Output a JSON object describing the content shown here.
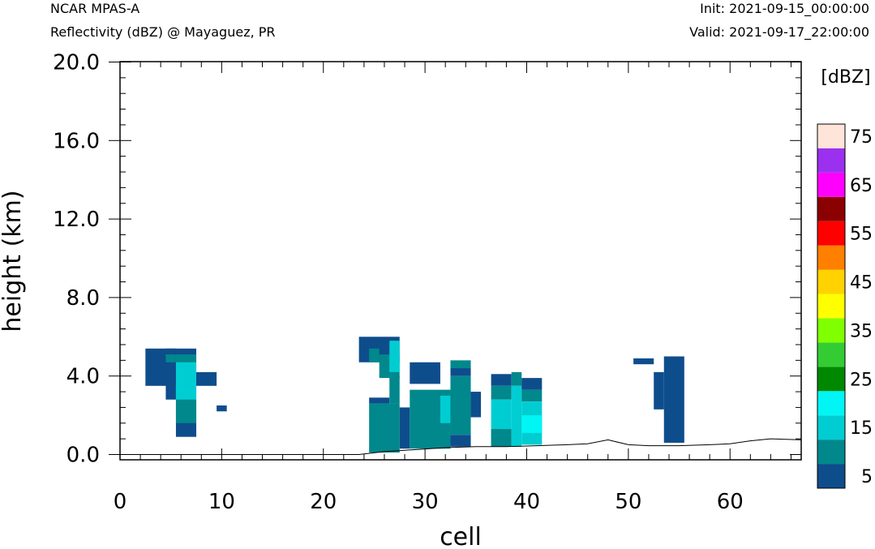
{
  "header": {
    "model": "NCAR MPAS-A",
    "subtitle": "Reflectivity (dBZ) @ Mayaguez, PR",
    "init": "Init: 2021-09-15_00:00:00",
    "valid": "Valid: 2021-09-17_22:00:00"
  },
  "chart_data": {
    "type": "heatmap",
    "xlabel": "cell",
    "ylabel": "height (km)",
    "xlim": [
      0,
      67
    ],
    "ylim": [
      -0.3,
      20.0
    ],
    "x_ticks": [
      0,
      10,
      20,
      30,
      40,
      50,
      60
    ],
    "x_tick_labels": [
      "0",
      "10",
      "20",
      "30",
      "40",
      "50",
      "60"
    ],
    "y_ticks": [
      0,
      4,
      8,
      12,
      16,
      20
    ],
    "y_tick_labels": [
      "0.0",
      "4.0",
      "8.0",
      "12.0",
      "16.0",
      "20.0"
    ],
    "colorbar": {
      "title": "[dBZ]",
      "levels": [
        5,
        10,
        15,
        20,
        25,
        30,
        35,
        40,
        45,
        50,
        55,
        60,
        65,
        70,
        75
      ],
      "labels": [
        "5",
        "15",
        "25",
        "35",
        "45",
        "55",
        "65",
        "75"
      ],
      "colors": [
        "#0e4d8c",
        "#00888c",
        "#00cdd2",
        "#00f5f5",
        "#008800",
        "#33cc33",
        "#80ff00",
        "#ffff00",
        "#ffd200",
        "#ff7f00",
        "#ff0000",
        "#8b0000",
        "#ff00ff",
        "#9b30ee",
        "#ffe4da"
      ]
    },
    "terrain": [
      [
        0,
        0
      ],
      [
        23.5,
        0
      ],
      [
        26,
        0.15
      ],
      [
        29,
        0.25
      ],
      [
        32,
        0.35
      ],
      [
        35,
        0.4
      ],
      [
        38,
        0.4
      ],
      [
        41,
        0.45
      ],
      [
        44,
        0.5
      ],
      [
        46,
        0.55
      ],
      [
        48,
        0.75
      ],
      [
        50,
        0.5
      ],
      [
        52,
        0.45
      ],
      [
        55,
        0.45
      ],
      [
        58,
        0.5
      ],
      [
        60,
        0.55
      ],
      [
        62,
        0.7
      ],
      [
        64,
        0.8
      ],
      [
        67,
        0.75
      ]
    ],
    "cells": [
      {
        "x": [
          2.5,
          5.5
        ],
        "y": [
          3.5,
          5.4
        ],
        "dbz": 5
      },
      {
        "x": [
          4.5,
          5.5
        ],
        "y": [
          2.8,
          5.4
        ],
        "dbz": 5
      },
      {
        "x": [
          4.5,
          5.5
        ],
        "y": [
          4.7,
          5.1
        ],
        "dbz": 10
      },
      {
        "x": [
          5.5,
          7.5
        ],
        "y": [
          0.9,
          5.4
        ],
        "dbz": 5
      },
      {
        "x": [
          5.5,
          7.5
        ],
        "y": [
          1.6,
          5.1
        ],
        "dbz": 10
      },
      {
        "x": [
          5.5,
          7.5
        ],
        "y": [
          2.8,
          4.7
        ],
        "dbz": 15
      },
      {
        "x": [
          7.5,
          9.5
        ],
        "y": [
          3.5,
          4.2
        ],
        "dbz": 5
      },
      {
        "x": [
          9.5,
          10.5
        ],
        "y": [
          2.2,
          2.5
        ],
        "dbz": 5
      },
      {
        "x": [
          23.5,
          27.5
        ],
        "y": [
          4.7,
          6.0
        ],
        "dbz": 5
      },
      {
        "x": [
          24.5,
          25.5
        ],
        "y": [
          4.7,
          5.4
        ],
        "dbz": 10
      },
      {
        "x": [
          25.5,
          27.5
        ],
        "y": [
          3.9,
          5.1
        ],
        "dbz": 10
      },
      {
        "x": [
          26.5,
          27.5
        ],
        "y": [
          4.2,
          5.8
        ],
        "dbz": 15
      },
      {
        "x": [
          24.5,
          26.5
        ],
        "y": [
          2.6,
          2.9
        ],
        "dbz": 5
      },
      {
        "x": [
          24.5,
          27.5
        ],
        "y": [
          0.1,
          2.6
        ],
        "dbz": 10
      },
      {
        "x": [
          26.5,
          27.5
        ],
        "y": [
          2.6,
          4.0
        ],
        "dbz": 10
      },
      {
        "x": [
          27.5,
          28.5
        ],
        "y": [
          0.3,
          2.4
        ],
        "dbz": 5
      },
      {
        "x": [
          28.5,
          31.5
        ],
        "y": [
          3.6,
          4.7
        ],
        "dbz": 5
      },
      {
        "x": [
          28.5,
          32.5
        ],
        "y": [
          0.3,
          3.3
        ],
        "dbz": 10
      },
      {
        "x": [
          31.5,
          32.5
        ],
        "y": [
          1.6,
          3.0
        ],
        "dbz": 15
      },
      {
        "x": [
          32.5,
          34.5
        ],
        "y": [
          4.4,
          4.8
        ],
        "dbz": 10
      },
      {
        "x": [
          32.5,
          34.5
        ],
        "y": [
          4.0,
          4.4
        ],
        "dbz": 5
      },
      {
        "x": [
          32.5,
          34.5
        ],
        "y": [
          1.0,
          4.0
        ],
        "dbz": 10
      },
      {
        "x": [
          32.5,
          34.5
        ],
        "y": [
          0.4,
          1.0
        ],
        "dbz": 5
      },
      {
        "x": [
          34.5,
          35.5
        ],
        "y": [
          1.9,
          3.2
        ],
        "dbz": 5
      },
      {
        "x": [
          36.5,
          38.5
        ],
        "y": [
          3.5,
          4.1
        ],
        "dbz": 5
      },
      {
        "x": [
          36.5,
          38.5
        ],
        "y": [
          2.8,
          3.5
        ],
        "dbz": 10
      },
      {
        "x": [
          36.5,
          38.5
        ],
        "y": [
          0.4,
          2.8
        ],
        "dbz": 15
      },
      {
        "x": [
          36.5,
          38.5
        ],
        "y": [
          0.4,
          1.3
        ],
        "dbz": 10
      },
      {
        "x": [
          38.5,
          39.5
        ],
        "y": [
          3.5,
          4.2
        ],
        "dbz": 10
      },
      {
        "x": [
          38.5,
          39.5
        ],
        "y": [
          0.4,
          3.5
        ],
        "dbz": 15
      },
      {
        "x": [
          39.5,
          41.5
        ],
        "y": [
          3.3,
          3.9
        ],
        "dbz": 5
      },
      {
        "x": [
          39.5,
          41.5
        ],
        "y": [
          2.7,
          3.3
        ],
        "dbz": 10
      },
      {
        "x": [
          39.5,
          41.5
        ],
        "y": [
          0.5,
          2.7
        ],
        "dbz": 15
      },
      {
        "x": [
          39.5,
          41.5
        ],
        "y": [
          1.1,
          2.0
        ],
        "dbz": 20
      },
      {
        "x": [
          50.5,
          52.5
        ],
        "y": [
          4.6,
          4.9
        ],
        "dbz": 5
      },
      {
        "x": [
          52.5,
          53.5
        ],
        "y": [
          2.3,
          4.2
        ],
        "dbz": 5
      },
      {
        "x": [
          53.5,
          55.5
        ],
        "y": [
          0.6,
          5.0
        ],
        "dbz": 5
      }
    ]
  }
}
